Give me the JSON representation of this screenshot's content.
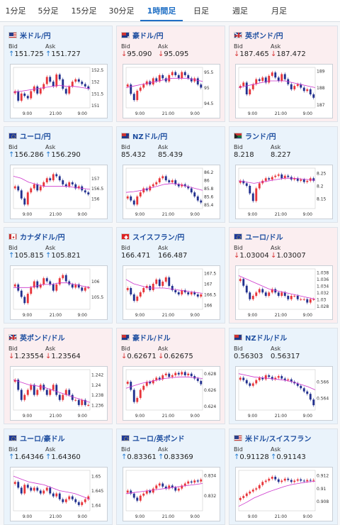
{
  "tabs": [
    {
      "label": "1分足",
      "active": false
    },
    {
      "label": "5分足",
      "active": false
    },
    {
      "label": "15分足",
      "active": false
    },
    {
      "label": "30分足",
      "active": false
    },
    {
      "label": "1時間足",
      "active": true
    },
    {
      "label": "日足",
      "active": false
    },
    {
      "label": "週足",
      "active": false
    },
    {
      "label": "月足",
      "active": false
    }
  ],
  "bid_label": "Bid",
  "ask_label": "Ask",
  "colors": {
    "accent": "#1f6fc5",
    "up": "#1e78d0",
    "down": "#d83434",
    "bull_candle": "#e8353a",
    "bear_candle": "#22308e",
    "ma_line": "#cc33cc"
  },
  "cards": [
    {
      "pair": "米ドル/円",
      "flag": "us",
      "bid": "151.725",
      "ask": "151.727",
      "dir": "up",
      "bg": "blue",
      "ylabels": [
        "152.5",
        "152",
        "151.5",
        "151"
      ],
      "ymin": 150.9,
      "ymax": 152.6,
      "xlabels": [
        "9:00",
        "21:00",
        "9:00"
      ],
      "prices": [
        151.6,
        151.2,
        151.5,
        151.4,
        151.3,
        151.6,
        151.8,
        151.5,
        151.7,
        151.9,
        152.2,
        152.0,
        151.8,
        152.3,
        152.1,
        151.7,
        151.5,
        151.8,
        152.0,
        152.1,
        152.0,
        151.9,
        151.8,
        151.7
      ],
      "ma": [
        151.55,
        151.6,
        151.65,
        151.7,
        151.75,
        151.8,
        151.85,
        151.8,
        151.8,
        151.75,
        151.7
      ]
    },
    {
      "pair": "豪ドル/円",
      "flag": "au",
      "bid": "95.090",
      "ask": "95.095",
      "dir": "down",
      "bg": "red",
      "ylabels": [
        "95.5",
        "95",
        "94.5"
      ],
      "ymin": 94.35,
      "ymax": 95.65,
      "xlabels": [
        "9:00",
        "21:00",
        "9:00"
      ],
      "prices": [
        95.1,
        94.8,
        94.6,
        94.9,
        95.0,
        95.1,
        95.2,
        95.1,
        95.3,
        95.2,
        95.4,
        95.3,
        95.2,
        95.4,
        95.5,
        95.4,
        95.3,
        95.5,
        95.4,
        95.3,
        95.2,
        95.3,
        95.1,
        95.0
      ],
      "ma": [
        95.0,
        95.05,
        95.1,
        95.15,
        95.2,
        95.25,
        95.3,
        95.3,
        95.3,
        95.25,
        95.2
      ]
    },
    {
      "pair": "英ポンド/円",
      "flag": "uk",
      "bid": "187.465",
      "ask": "187.472",
      "dir": "down",
      "bg": "red",
      "ylabels": [
        "189",
        "188",
        "187"
      ],
      "ymin": 186.8,
      "ymax": 189.2,
      "xlabels": [
        "9:00",
        "21:00",
        "9:00"
      ],
      "prices": [
        188.1,
        188.3,
        187.6,
        187.9,
        188.2,
        188.5,
        188.4,
        188.6,
        188.3,
        188.7,
        188.9,
        188.6,
        188.4,
        188.8,
        188.5,
        188.2,
        187.9,
        188.1,
        188.2,
        188.0,
        187.8,
        187.9,
        187.6,
        187.4
      ],
      "ma": [
        188.0,
        188.1,
        188.2,
        188.3,
        188.4,
        188.4,
        188.4,
        188.3,
        188.2,
        188.1,
        188.0
      ]
    },
    {
      "pair": "ユーロ/円",
      "flag": "eu",
      "bid": "156.286",
      "ask": "156.290",
      "dir": "up",
      "bg": "blue",
      "ylabels": [
        "157",
        "156.5",
        "156"
      ],
      "ymin": 155.5,
      "ymax": 157.5,
      "xlabels": [
        "9:00",
        "21:00",
        "9:00"
      ],
      "prices": [
        156.6,
        156.4,
        156.0,
        155.7,
        156.3,
        156.5,
        156.7,
        156.4,
        156.6,
        156.8,
        157.0,
        156.9,
        157.2,
        157.1,
        156.9,
        156.7,
        156.6,
        156.8,
        156.7,
        156.5,
        156.6,
        156.4,
        156.3,
        156.2
      ],
      "ma": [
        157.1,
        157.0,
        156.8,
        156.7,
        156.6,
        156.6,
        156.6,
        156.6,
        156.55,
        156.5,
        156.45
      ]
    },
    {
      "pair": "NZドル/円",
      "flag": "nz",
      "bid": "85.432",
      "ask": "85.439",
      "dir": "none",
      "bg": "blue",
      "ylabels": [
        "86.2",
        "86",
        "85.8",
        "85.6",
        "85.4"
      ],
      "ymin": 85.3,
      "ymax": 86.3,
      "xlabels": [
        "9:00",
        "21:00",
        "9:00"
      ],
      "prices": [
        85.6,
        85.5,
        85.4,
        85.6,
        85.7,
        85.8,
        85.75,
        85.85,
        85.9,
        85.95,
        86.05,
        86.1,
        86.0,
        85.95,
        86.0,
        85.9,
        85.85,
        85.9,
        85.85,
        85.8,
        85.7,
        85.6,
        85.5,
        85.45
      ],
      "ma": [
        85.7,
        85.72,
        85.75,
        85.8,
        85.85,
        85.9,
        85.92,
        85.9,
        85.85,
        85.8,
        85.75
      ]
    },
    {
      "pair": "ランド/円",
      "flag": "za",
      "bid": "8.218",
      "ask": "8.227",
      "dir": "none",
      "bg": "blue",
      "ylabels": [
        "8.25",
        "8.2",
        "8.15"
      ],
      "ymin": 8.11,
      "ymax": 8.27,
      "xlabels": [
        "9:00",
        "21:00",
        "9:00"
      ],
      "prices": [
        8.22,
        8.21,
        8.2,
        8.17,
        8.14,
        8.19,
        8.21,
        8.22,
        8.23,
        8.225,
        8.235,
        8.24,
        8.245,
        8.23,
        8.24,
        8.235,
        8.225,
        8.23,
        8.22,
        8.225,
        8.215,
        8.22,
        8.23,
        8.22
      ],
      "ma": [
        8.22,
        8.215,
        8.21,
        8.215,
        8.22,
        8.225,
        8.23,
        8.23,
        8.228,
        8.225,
        8.222
      ]
    },
    {
      "pair": "カナダドル/円",
      "flag": "ca",
      "bid": "105.815",
      "ask": "105.821",
      "dir": "up",
      "bg": "blue",
      "ylabels": [
        "106",
        "105.5"
      ],
      "ymin": 105.1,
      "ymax": 106.4,
      "xlabels": [
        "9:00",
        "21:00",
        "9:00"
      ],
      "prices": [
        105.9,
        105.7,
        105.5,
        105.3,
        105.6,
        105.8,
        106.0,
        105.8,
        105.9,
        106.1,
        106.0,
        105.9,
        105.7,
        105.9,
        106.1,
        106.2,
        106.0,
        105.9,
        105.8,
        105.9,
        105.8,
        105.7,
        105.8,
        105.8
      ],
      "ma": [
        105.8,
        105.8,
        105.8,
        105.85,
        105.9,
        105.9,
        105.95,
        105.95,
        105.9,
        105.85,
        105.8
      ]
    },
    {
      "pair": "スイスフラン/円",
      "flag": "ch",
      "bid": "166.471",
      "ask": "166.487",
      "dir": "none",
      "bg": "blue",
      "ylabels": [
        "167.5",
        "167",
        "166.5",
        "166"
      ],
      "ymin": 165.8,
      "ymax": 167.7,
      "xlabels": [
        "9:00",
        "21:00",
        "9:00"
      ],
      "prices": [
        166.8,
        166.5,
        166.2,
        166.4,
        166.6,
        166.8,
        166.9,
        166.7,
        167.0,
        167.2,
        166.9,
        167.1,
        167.3,
        166.9,
        166.7,
        166.6,
        166.5,
        166.7,
        166.6,
        166.5,
        166.6,
        166.5,
        166.4,
        166.5
      ],
      "ma": [
        167.2,
        167.0,
        166.9,
        166.8,
        166.8,
        166.8,
        166.75,
        166.7,
        166.65,
        166.6,
        166.55
      ]
    },
    {
      "pair": "ユーロ/ドル",
      "flag": "eu",
      "bid": "1.03004",
      "ask": "1.03007",
      "dir": "down",
      "bg": "red",
      "ylabels": [
        "1.038",
        "1.036",
        "1.034",
        "1.032",
        "1.03",
        "1.028"
      ],
      "ymin": 1.027,
      "ymax": 1.039,
      "xlabels": [
        "9:00",
        "21:00",
        "9:00"
      ],
      "prices": [
        1.036,
        1.034,
        1.032,
        1.03,
        1.031,
        1.032,
        1.033,
        1.032,
        1.031,
        1.032,
        1.033,
        1.032,
        1.031,
        1.032,
        1.031,
        1.03,
        1.031,
        1.031,
        1.03,
        1.03,
        1.03,
        1.029,
        1.03,
        1.03
      ],
      "ma": [
        1.037,
        1.036,
        1.035,
        1.034,
        1.033,
        1.0325,
        1.032,
        1.0315,
        1.031,
        1.0305,
        1.03
      ]
    },
    {
      "pair": "英ポンド/ドル",
      "flag": "uk",
      "bid": "1.23554",
      "ask": "1.23564",
      "dir": "down",
      "bg": "red",
      "ylabels": [
        "1.242",
        "1.24",
        "1.238",
        "1.236"
      ],
      "ymin": 1.235,
      "ymax": 1.243,
      "xlabels": [
        "9:00",
        "21:00",
        "9:00"
      ],
      "prices": [
        1.241,
        1.239,
        1.237,
        1.238,
        1.239,
        1.24,
        1.238,
        1.239,
        1.24,
        1.239,
        1.238,
        1.239,
        1.24,
        1.238,
        1.237,
        1.238,
        1.239,
        1.238,
        1.237,
        1.237,
        1.236,
        1.237,
        1.236,
        1.236
      ],
      "ma": [
        1.241,
        1.2405,
        1.24,
        1.2398,
        1.2395,
        1.239,
        1.2385,
        1.238,
        1.2375,
        1.237,
        1.2365
      ]
    },
    {
      "pair": "豪ドル/ドル",
      "flag": "au",
      "bid": "0.62671",
      "ask": "0.62675",
      "dir": "down",
      "bg": "red",
      "ylabels": [
        "0.628",
        "0.626",
        "0.624"
      ],
      "ymin": 0.6235,
      "ymax": 0.6285,
      "xlabels": [
        "9:00",
        "21:00",
        "9:00"
      ],
      "prices": [
        0.627,
        0.626,
        0.6245,
        0.625,
        0.626,
        0.6265,
        0.627,
        0.6268,
        0.6272,
        0.6275,
        0.6273,
        0.6278,
        0.628,
        0.6276,
        0.6278,
        0.6281,
        0.6279,
        0.6282,
        0.6278,
        0.628,
        0.6277,
        0.6274,
        0.6271,
        0.6267
      ],
      "ma": [
        0.6262,
        0.6265,
        0.6268,
        0.627,
        0.6272,
        0.6274,
        0.6275,
        0.6276,
        0.6276,
        0.6275,
        0.6274
      ]
    },
    {
      "pair": "NZドル/ドル",
      "flag": "nz",
      "bid": "0.56303",
      "ask": "0.56317",
      "dir": "none",
      "bg": "blue",
      "ylabels": [
        "0.566",
        "0.564"
      ],
      "ymin": 0.5625,
      "ymax": 0.5675,
      "xlabels": [
        "9:00",
        "21:00",
        "9:00"
      ],
      "prices": [
        0.5665,
        0.5662,
        0.5658,
        0.5655,
        0.5658,
        0.5662,
        0.5665,
        0.5663,
        0.5668,
        0.5666,
        0.5663,
        0.5665,
        0.5667,
        0.5664,
        0.5662,
        0.5663,
        0.566,
        0.5658,
        0.5655,
        0.5652,
        0.5648,
        0.5645,
        0.5638,
        0.5631
      ],
      "ma": [
        0.567,
        0.5668,
        0.5666,
        0.5665,
        0.5664,
        0.5663,
        0.5662,
        0.566,
        0.5657,
        0.5654,
        0.565
      ]
    },
    {
      "pair": "ユーロ/豪ドル",
      "flag": "eu",
      "bid": "1.64346",
      "ask": "1.64360",
      "dir": "up",
      "bg": "blue",
      "ylabels": [
        "1.65",
        "1.645",
        "1.64"
      ],
      "ymin": 1.638,
      "ymax": 1.652,
      "xlabels": [
        "9:00",
        "21:00",
        "9:00"
      ],
      "prices": [
        1.648,
        1.646,
        1.644,
        1.647,
        1.646,
        1.645,
        1.646,
        1.645,
        1.644,
        1.645,
        1.646,
        1.644,
        1.643,
        1.644,
        1.642,
        1.641,
        1.642,
        1.643,
        1.642,
        1.641,
        1.64,
        1.641,
        1.642,
        1.643
      ],
      "ma": [
        1.65,
        1.649,
        1.648,
        1.6475,
        1.647,
        1.646,
        1.645,
        1.6445,
        1.644,
        1.643,
        1.642
      ]
    },
    {
      "pair": "ユーロ/英ポンド",
      "flag": "eu",
      "bid": "0.83361",
      "ask": "0.83369",
      "dir": "up",
      "bg": "blue",
      "ylabels": [
        "0.834",
        "0.832"
      ],
      "ymin": 0.8305,
      "ymax": 0.8345,
      "xlabels": [
        "9:00",
        "21:00",
        "9:00"
      ],
      "prices": [
        0.8325,
        0.8322,
        0.8318,
        0.8315,
        0.832,
        0.8322,
        0.8325,
        0.8323,
        0.8327,
        0.833,
        0.8332,
        0.8329,
        0.8327,
        0.833,
        0.8328,
        0.8325,
        0.8327,
        0.833,
        0.8332,
        0.8334,
        0.8333,
        0.8335,
        0.8334,
        0.8336
      ],
      "ma": [
        0.8322,
        0.8323,
        0.8324,
        0.8325,
        0.8326,
        0.8327,
        0.8328,
        0.8329,
        0.833,
        0.8331,
        0.8332
      ]
    },
    {
      "pair": "米ドル/スイスフラン",
      "flag": "us",
      "bid": "0.91128",
      "ask": "0.91143",
      "dir": "up",
      "bg": "blue",
      "ylabels": [
        "0.912",
        "0.91",
        "0.908"
      ],
      "ymin": 0.9065,
      "ymax": 0.9128,
      "xlabels": [
        "9:00",
        "21:00",
        "9:00"
      ],
      "prices": [
        0.9085,
        0.9088,
        0.9092,
        0.9095,
        0.9098,
        0.91,
        0.9105,
        0.911,
        0.9112,
        0.9115,
        0.9118,
        0.9114,
        0.911,
        0.9112,
        0.9115,
        0.9113,
        0.911,
        0.9112,
        0.9114,
        0.9112,
        0.9111,
        0.9113,
        0.9112,
        0.9113
      ],
      "ma": [
        0.9072,
        0.9078,
        0.9085,
        0.909,
        0.9095,
        0.9099,
        0.9103,
        0.9106,
        0.9108,
        0.911,
        0.9111
      ]
    }
  ]
}
